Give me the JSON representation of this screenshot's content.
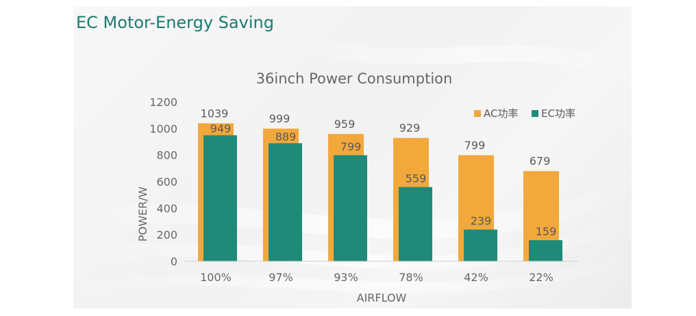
{
  "slide": {
    "heading": "EC Motor-Energy Saving"
  },
  "chart_data": {
    "type": "bar",
    "title": "36inch Power Consumption",
    "xlabel": "AIRFLOW",
    "ylabel": "POWER/W",
    "categories": [
      "100%",
      "97%",
      "93%",
      "78%",
      "42%",
      "22%"
    ],
    "ylim": [
      0,
      1200
    ],
    "yticks": [
      0,
      200,
      400,
      600,
      800,
      1000,
      1200
    ],
    "legend_position": "top-right",
    "grid": false,
    "series": [
      {
        "name": "AC功率",
        "color": "#f2a83b",
        "values": [
          1039,
          999,
          959,
          929,
          799,
          679
        ]
      },
      {
        "name": "EC功率",
        "color": "#1f8a78",
        "values": [
          949,
          889,
          799,
          559,
          239,
          159
        ]
      }
    ]
  }
}
